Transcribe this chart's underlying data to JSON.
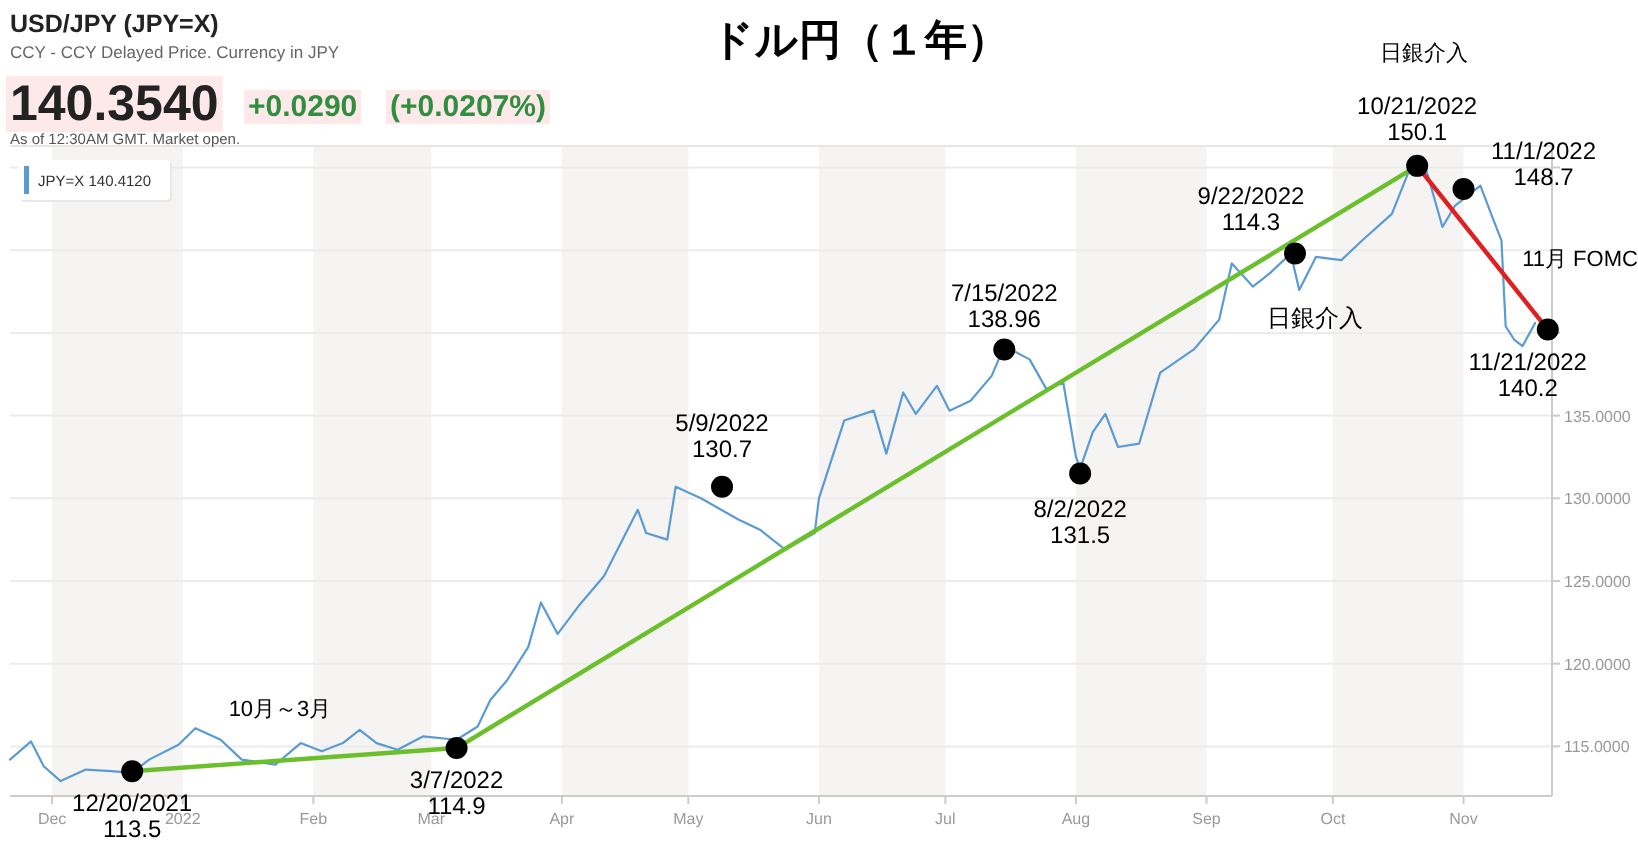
{
  "chart_data": {
    "type": "line",
    "title": "ドル円（１年）",
    "annotations": [
      "USD/JPY (JPY=X)",
      "CCY - CCY Delayed Price. Currency in JPY",
      "140.3540",
      "+0.0290",
      "(+0.0207%)",
      "As of 12:30AM GMT. Market open.",
      "10月～3月",
      "11月 FOMC",
      "日銀介入",
      {
        "text": "12/20/2021\n113.5",
        "x": "2021-12-20",
        "y": 113.5
      },
      {
        "text": "3/7/2022\n114.9",
        "x": "2022-03-07",
        "y": 114.9
      },
      {
        "text": "5/9/2022\n130.7",
        "x": "2022-05-09",
        "y": 130.7
      },
      {
        "text": "7/15/2022\n138.96",
        "x": "2022-07-15",
        "y": 139.0
      },
      {
        "text": "8/2/2022\n131.5",
        "x": "2022-08-02",
        "y": 131.5
      },
      {
        "text": "9/22/2022\n114.3",
        "x": "2022-09-22",
        "y": 144.8
      },
      {
        "text": "日銀介入",
        "x": "2022-09-22",
        "y": 144.8
      },
      {
        "text": "10/21/2022\n150.1",
        "x": "2022-10-21",
        "y": 150.1
      },
      {
        "text": "11/1/2022\n148.7",
        "x": "2022-11-01",
        "y": 148.7
      },
      {
        "text": "11/21/2022\n140.2",
        "x": "2022-11-21",
        "y": 140.2
      }
    ],
    "x": [
      "2021-11-21",
      "2021-11-26",
      "2021-11-29",
      "2021-12-03",
      "2021-12-09",
      "2021-12-15",
      "2021-12-20",
      "2021-12-24",
      "2021-12-31",
      "2022-01-04",
      "2022-01-10",
      "2022-01-15",
      "2022-01-23",
      "2022-01-29",
      "2022-02-03",
      "2022-02-08",
      "2022-02-12",
      "2022-02-16",
      "2022-02-21",
      "2022-02-27",
      "2022-03-07",
      "2022-03-12",
      "2022-03-15",
      "2022-03-19",
      "2022-03-24",
      "2022-03-27",
      "2022-03-31",
      "2022-04-05",
      "2022-04-11",
      "2022-04-19",
      "2022-04-21",
      "2022-04-26",
      "2022-04-28",
      "2022-05-04",
      "2022-05-13",
      "2022-05-18",
      "2022-05-24",
      "2022-05-31",
      "2022-06-01",
      "2022-06-07",
      "2022-06-14",
      "2022-06-17",
      "2022-06-21",
      "2022-06-24",
      "2022-06-29",
      "2022-07-02",
      "2022-07-07",
      "2022-07-12",
      "2022-07-15",
      "2022-07-21",
      "2022-07-25",
      "2022-07-29",
      "2022-08-01",
      "2022-08-02",
      "2022-08-05",
      "2022-08-08",
      "2022-08-11",
      "2022-08-16",
      "2022-08-21",
      "2022-08-29",
      "2022-09-04",
      "2022-09-07",
      "2022-09-12",
      "2022-09-16",
      "2022-09-21",
      "2022-09-23",
      "2022-09-27",
      "2022-10-03",
      "2022-10-08",
      "2022-10-15",
      "2022-10-20",
      "2022-10-23",
      "2022-10-27",
      "2022-10-30",
      "2022-11-03",
      "2022-11-05",
      "2022-11-08",
      "2022-11-10",
      "2022-11-11",
      "2022-11-13",
      "2022-11-15",
      "2022-11-18"
    ],
    "series": [
      {
        "name": "JPY=X 140.4120",
        "color": "#5b9bd5",
        "values": [
          114.2,
          115.3,
          113.8,
          112.9,
          113.6,
          113.5,
          113.4,
          114.2,
          115.1,
          116.1,
          115.4,
          114.2,
          113.9,
          115.2,
          114.7,
          115.2,
          116.0,
          115.2,
          114.8,
          115.6,
          115.4,
          116.2,
          117.8,
          119.0,
          121.0,
          123.7,
          121.8,
          123.5,
          125.3,
          129.3,
          127.9,
          127.5,
          130.7,
          130.0,
          128.7,
          128.1,
          126.9,
          127.9,
          130.0,
          134.7,
          135.3,
          132.7,
          136.4,
          135.1,
          136.8,
          135.3,
          135.9,
          137.4,
          139.2,
          138.4,
          136.6,
          137.0,
          132.5,
          131.8,
          134.0,
          135.1,
          133.1,
          133.3,
          137.6,
          139.0,
          140.8,
          144.2,
          142.8,
          143.6,
          144.8,
          142.6,
          144.6,
          144.4,
          145.6,
          147.2,
          150.4,
          150.0,
          146.4,
          147.7,
          148.5,
          148.9,
          146.9,
          145.6,
          140.4,
          139.6,
          139.2,
          140.6
        ]
      },
      {
        "type": "line",
        "color": "#6abf2a",
        "x": [
          "2021-12-20",
          "2022-03-07",
          "2022-10-21"
        ],
        "values": [
          113.5,
          114.9,
          150.1
        ]
      },
      {
        "type": "line",
        "color": "#e02020",
        "x": [
          "2022-10-21",
          "2022-11-21"
        ],
        "values": [
          150.1,
          140.2
        ]
      },
      {
        "type": "scatter",
        "color": "#000000",
        "marker": "circle",
        "x": [
          "2021-12-20",
          "2022-03-07",
          "2022-05-09",
          "2022-07-15",
          "2022-08-02",
          "2022-09-22",
          "2022-10-21",
          "2022-11-01",
          "2022-11-21"
        ],
        "values": [
          113.5,
          114.9,
          130.7,
          139.0,
          131.5,
          144.8,
          150.1,
          148.7,
          140.2
        ]
      }
    ],
    "xlim": [
      "2021-11-21",
      "2022-11-22"
    ],
    "xticks": [
      {
        "value": "2021-12-01",
        "label": "Dec"
      },
      {
        "value": "2022-01-01",
        "label": "2022"
      },
      {
        "value": "2022-02-01",
        "label": "Feb"
      },
      {
        "value": "2022-03-01",
        "label": "Mar"
      },
      {
        "value": "2022-04-01",
        "label": "Apr"
      },
      {
        "value": "2022-05-01",
        "label": "May"
      },
      {
        "value": "2022-06-01",
        "label": "Jun"
      },
      {
        "value": "2022-07-01",
        "label": "Jul"
      },
      {
        "value": "2022-08-01",
        "label": "Aug"
      },
      {
        "value": "2022-09-01",
        "label": "Sep"
      },
      {
        "value": "2022-10-01",
        "label": "Oct"
      },
      {
        "value": "2022-11-01",
        "label": "Nov"
      }
    ],
    "ylim": [
      112,
      151.3
    ],
    "yticks": [
      {
        "value": 115,
        "label": "115.0000"
      },
      {
        "value": 120,
        "label": "120.0000"
      },
      {
        "value": 125,
        "label": "125.0000"
      },
      {
        "value": 130,
        "label": "130.0000"
      },
      {
        "value": 135,
        "label": "135.0000"
      },
      {
        "value": 140,
        "label": null
      },
      {
        "value": 145,
        "label": null
      },
      {
        "value": 150,
        "label": null
      }
    ],
    "grid": "y",
    "legend": "top left",
    "bands": [
      {
        "axis": "x",
        "from": "2021-12-01",
        "to": "2022-01-01",
        "color": "#f5f4f3"
      },
      {
        "axis": "x",
        "from": "2022-02-01",
        "to": "2022-03-01",
        "color": "#f5f4f3"
      },
      {
        "axis": "x",
        "from": "2022-04-01",
        "to": "2022-05-01",
        "color": "#f5f4f3"
      },
      {
        "axis": "x",
        "from": "2022-06-01",
        "to": "2022-07-01",
        "color": "#f5f4f3"
      },
      {
        "axis": "x",
        "from": "2022-08-01",
        "to": "2022-09-01",
        "color": "#f5f4f3"
      },
      {
        "axis": "x",
        "from": "2022-10-01",
        "to": "2022-11-01",
        "color": "#f5f4f3"
      }
    ]
  }
}
